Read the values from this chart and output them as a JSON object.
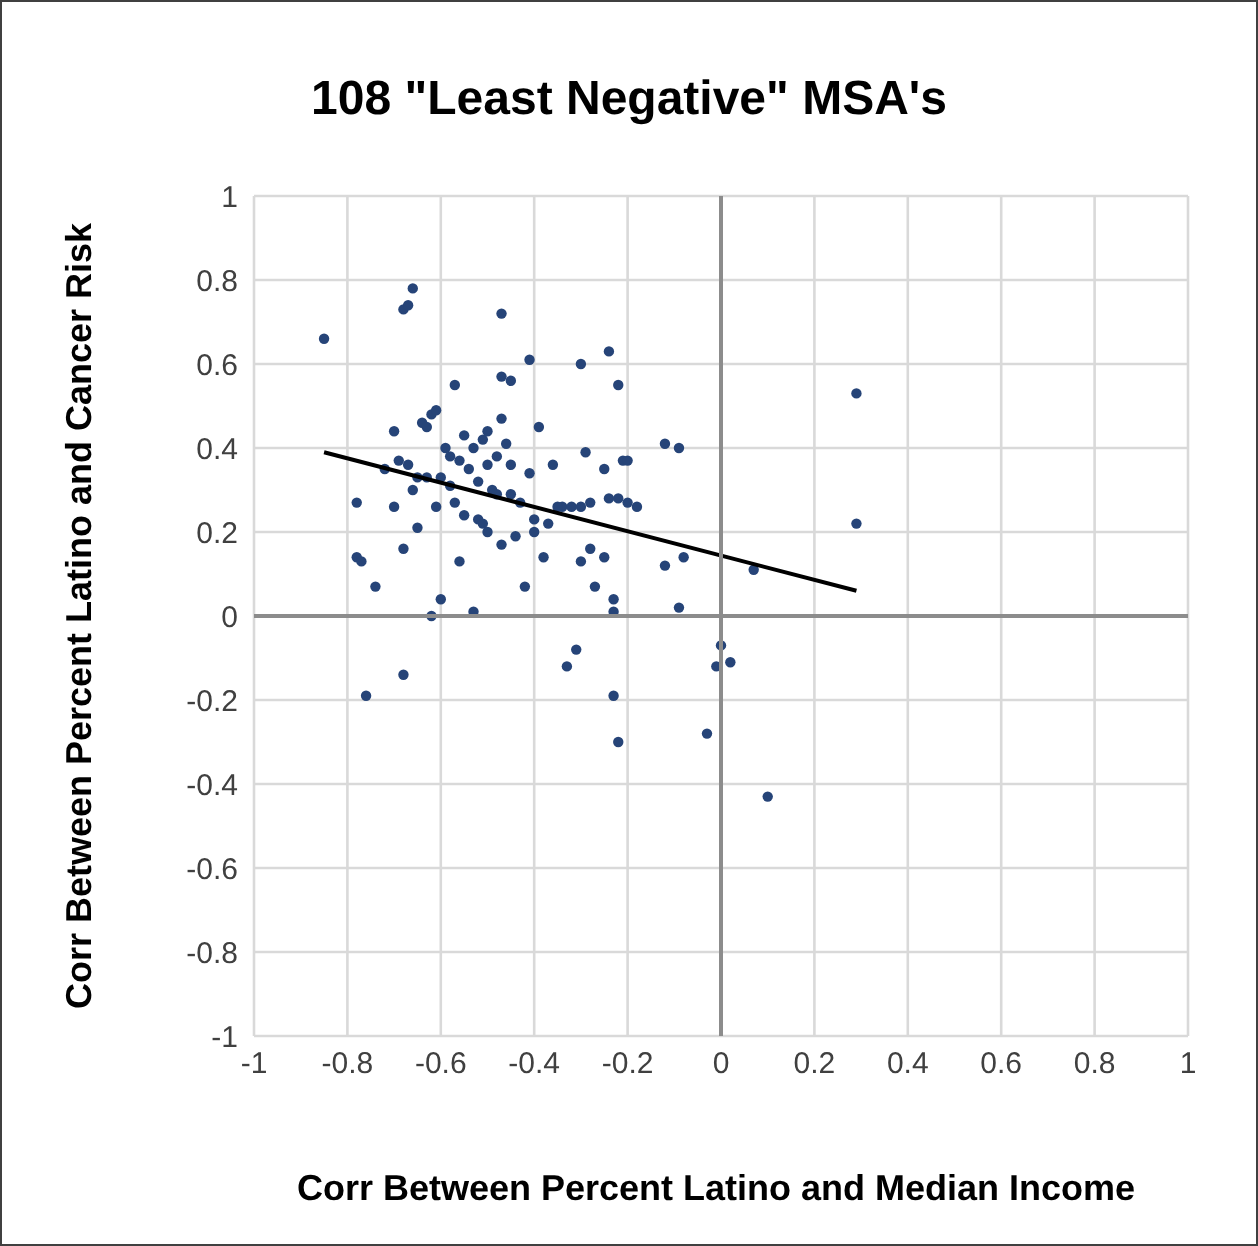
{
  "chart_data": {
    "type": "scatter",
    "title": "108 \"Least Negative\" MSA's",
    "xlabel": "Corr Between Percent Latino and Median Income",
    "ylabel": "Corr Between Percent Latino and Cancer Risk",
    "xlim": [
      -1,
      1
    ],
    "xticks": [
      -1,
      -0.8,
      -0.6,
      -0.4,
      -0.2,
      0,
      0.2,
      0.4,
      0.6,
      0.8,
      1
    ],
    "ylim": [
      -1,
      1
    ],
    "yticks": [
      -1,
      -0.8,
      -0.6,
      -0.4,
      -0.2,
      0,
      0.2,
      0.4,
      0.6,
      0.8,
      1
    ],
    "grid": true,
    "marker": "circle",
    "series": [
      {
        "color": "#264478",
        "x": [
          -0.85,
          -0.68,
          -0.67,
          -0.66,
          -0.47,
          -0.41,
          -0.3,
          -0.24,
          -0.22,
          -0.57,
          -0.47,
          -0.45,
          -0.78,
          -0.78,
          -0.77,
          -0.74,
          -0.76,
          -0.68,
          -0.68,
          -0.7,
          -0.69,
          -0.7,
          -0.67,
          -0.66,
          -0.64,
          -0.63,
          -0.62,
          -0.61,
          -0.63,
          -0.61,
          -0.6,
          -0.62,
          -0.59,
          -0.58,
          -0.57,
          -0.56,
          -0.55,
          -0.53,
          -0.52,
          -0.51,
          -0.5,
          -0.5,
          -0.49,
          -0.52,
          -0.51,
          -0.5,
          -0.53,
          -0.48,
          -0.47,
          -0.46,
          -0.47,
          -0.45,
          -0.44,
          -0.42,
          -0.41,
          -0.4,
          -0.39,
          -0.38,
          -0.36,
          -0.34,
          -0.33,
          -0.31,
          -0.32,
          -0.3,
          -0.3,
          -0.29,
          -0.28,
          -0.28,
          -0.27,
          -0.25,
          -0.24,
          -0.23,
          -0.23,
          -0.23,
          -0.22,
          -0.21,
          -0.2,
          -0.2,
          -0.18,
          -0.12,
          -0.12,
          -0.09,
          -0.09,
          -0.08,
          -0.03,
          -0.01,
          0,
          0.02,
          0.07,
          0.1,
          0.29,
          0.29,
          -0.72,
          -0.65,
          -0.56,
          -0.54,
          -0.45,
          -0.43,
          -0.37,
          -0.35,
          -0.25,
          -0.22,
          -0.6,
          -0.58,
          -0.48,
          -0.55,
          -0.4,
          -0.65
        ],
        "values": [
          0.66,
          0.73,
          0.74,
          0.78,
          0.72,
          0.61,
          0.6,
          0.63,
          0.55,
          0.55,
          0.57,
          0.56,
          0.27,
          0.14,
          0.13,
          0.07,
          -0.19,
          -0.14,
          0.16,
          0.44,
          0.37,
          0.26,
          0.36,
          0.3,
          0.46,
          0.45,
          0.48,
          0.49,
          0.33,
          0.26,
          0.04,
          0,
          0.4,
          0.31,
          0.27,
          0.13,
          0.43,
          0.4,
          0.32,
          0.42,
          0.44,
          0.36,
          0.3,
          0.23,
          0.22,
          0.2,
          0.01,
          0.38,
          0.47,
          0.41,
          0.17,
          0.36,
          0.19,
          0.07,
          0.34,
          0.2,
          0.45,
          0.14,
          0.36,
          0.26,
          -0.12,
          -0.08,
          0.26,
          0.26,
          0.13,
          0.39,
          0.16,
          0.27,
          0.07,
          0.35,
          0.28,
          0.01,
          0.04,
          -0.19,
          -0.3,
          0.37,
          0.37,
          0.27,
          0.26,
          0.41,
          0.12,
          0.4,
          0.02,
          0.14,
          -0.28,
          -0.12,
          -0.07,
          -0.11,
          0.11,
          -0.43,
          0.53,
          0.22,
          0.35,
          0.33,
          0.37,
          0.35,
          0.29,
          0.27,
          0.22,
          0.26,
          0.14,
          0.28,
          0.33,
          0.38,
          0.29,
          0.24,
          0.23,
          0.21
        ]
      },
      {
        "type": "line",
        "marker": "none",
        "color": "#000000",
        "x": [
          -0.85,
          0.29
        ],
        "values": [
          0.39,
          0.06
        ]
      }
    ]
  }
}
